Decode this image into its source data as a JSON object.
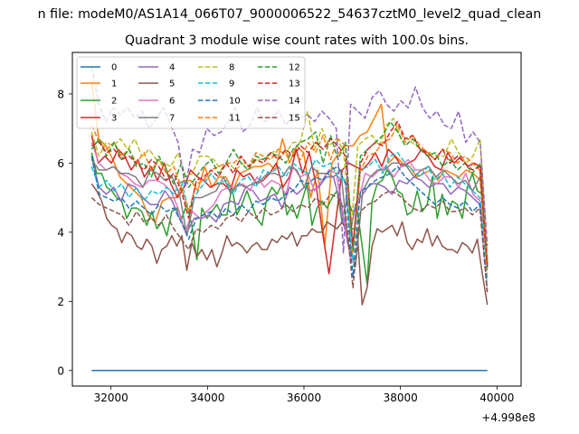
{
  "chart_data": {
    "type": "line",
    "suptitle": "n file: modeM0/AS1A14_066T07_9000006522_54637cztM0_level2_quad_clean",
    "title": "Quadrant 3 module wise count rates with 100.0s bins.",
    "xlabel": "",
    "ylabel": "",
    "x_offset_label": "+4.998e8",
    "x_offset": 499800000,
    "xlim": [
      31200,
      40500
    ],
    "ylim": [
      -0.45,
      9.2
    ],
    "x_ticks": [
      32000,
      34000,
      36000,
      38000,
      40000
    ],
    "x_tick_labels": [
      "32000",
      "34000",
      "36000",
      "38000",
      "40000"
    ],
    "y_ticks": [
      0,
      2,
      4,
      6,
      8
    ],
    "y_tick_labels": [
      "0",
      "2",
      "4",
      "6",
      "8"
    ],
    "x_range": [
      31600,
      39800
    ],
    "x_step": 100,
    "grid": false,
    "legend_position": "top-left",
    "series": [
      {
        "name": "0",
        "color": "#1f77b4",
        "style": "solid",
        "values": [
          0,
          0
        ]
      },
      {
        "name": "1",
        "color": "#ff7f0e",
        "style": "solid",
        "values": [
          8.4,
          6.7,
          6.5,
          6.1,
          5.6,
          5.4,
          5.2,
          5.0,
          4.5,
          4.3,
          4.9,
          5.0,
          5.0,
          5.5,
          5.5,
          5.2,
          5.9,
          5.3,
          5.6,
          5.6,
          5.2,
          5.7,
          5.8,
          5.9,
          5.9,
          6.0,
          5.8,
          6.7,
          6.0,
          6.5,
          6.3,
          5.0,
          5.8,
          3.6,
          6.0,
          6.3,
          6.5,
          6.5,
          6.8,
          6.9,
          7.3,
          7.7,
          6.0,
          6.2,
          6.0,
          5.9,
          5.6,
          5.7,
          5.8,
          5.5,
          5.8,
          5.7,
          5.6,
          5.8,
          5.7,
          5.5,
          3.0
        ]
      },
      {
        "name": "2",
        "color": "#2ca02c",
        "style": "solid",
        "values": [
          6.3,
          5.7,
          5.7,
          5.3,
          5.2,
          5.0,
          4.9,
          4.4,
          4.7,
          4.7,
          4.6,
          4.2,
          4.6,
          4.1,
          4.3,
          3.9,
          4.6,
          4.7,
          4.4,
          4.8,
          4.2,
          3.2,
          4.7,
          4.4,
          4.6,
          4.8,
          4.5,
          4.5,
          5.3,
          4.5,
          4.8,
          5.2,
          4.8,
          4.4,
          4.2,
          5.0,
          5.3,
          5.1,
          5.4,
          4.5,
          4.8,
          4.4,
          4.9,
          5.4,
          4.2,
          4.7,
          4.9,
          4.7,
          5.0,
          5.2,
          4.3,
          5.0,
          4.6,
          4.7,
          3.6,
          2.5,
          4.9,
          5.4,
          5.5,
          5.8,
          5.6,
          5.2,
          5.1,
          4.5,
          4.6,
          5.2,
          4.6,
          4.8,
          5.6,
          4.4,
          5.1,
          4.5,
          4.9,
          4.8,
          4.4,
          5.3,
          5.7,
          5.2,
          5.1,
          3.0
        ]
      },
      {
        "name": "3",
        "color": "#d62728",
        "style": "solid",
        "values": [
          6.8,
          6.0,
          6.2,
          6.0,
          6.4,
          6.2,
          5.8,
          6.1,
          5.6,
          5.9,
          5.5,
          6.0,
          5.4,
          5.0,
          5.3,
          5.8,
          5.6,
          5.5,
          5.3,
          5.4,
          5.4,
          5.2,
          5.8,
          5.6,
          5.7,
          5.4,
          5.5,
          5.7,
          6.0,
          5.3,
          5.6,
          6.4,
          5.7,
          6.3,
          5.4,
          4.0,
          2.8,
          4.3,
          5.8,
          6.0,
          5.9,
          5.8,
          6.0,
          6.3,
          5.9,
          6.4,
          6.2,
          5.9,
          6.0,
          6.1,
          6.4,
          6.2,
          5.9,
          5.8,
          6.3,
          6.0,
          6.2,
          5.9,
          6.0,
          5.9,
          3.1
        ]
      },
      {
        "name": "4",
        "color": "#9467bd",
        "style": "solid",
        "values": [
          6.2,
          5.3,
          5.1,
          5.3,
          4.9,
          5.4,
          5.3,
          5.0,
          4.8,
          4.8,
          5.2,
          4.9,
          4.4,
          4.0,
          4.4,
          4.4,
          4.5,
          4.3,
          4.8,
          4.9,
          4.8,
          5.3,
          5.2,
          4.9,
          5.0,
          5.1,
          4.7,
          5.3,
          5.1,
          5.3,
          5.2,
          5.3,
          5.6,
          5.6,
          4.8,
          3.6,
          4.8,
          5.1,
          5.4,
          5.4,
          5.3,
          5.1,
          5.5,
          5.4,
          5.6,
          5.5,
          5.3,
          5.4,
          5.4,
          5.1,
          5.3,
          5.2,
          5.0,
          4.8,
          3.2
        ]
      },
      {
        "name": "5",
        "color": "#8c564b",
        "style": "solid",
        "values": [
          5.4,
          5.2,
          4.9,
          4.4,
          4.2,
          4.1,
          3.7,
          4.0,
          3.9,
          3.6,
          3.5,
          3.8,
          3.6,
          3.1,
          3.5,
          3.6,
          3.9,
          3.6,
          3.9,
          2.9,
          3.7,
          3.3,
          3.5,
          3.2,
          3.5,
          3.0,
          3.4,
          3.9,
          3.6,
          3.7,
          3.6,
          3.4,
          3.6,
          3.7,
          3.5,
          3.5,
          3.8,
          3.7,
          3.9,
          3.8,
          4.0,
          3.6,
          3.9,
          3.9,
          4.1,
          4.0,
          4.0,
          4.3,
          4.2,
          4.1,
          4.3,
          4.0,
          4.1,
          4.1,
          1.9,
          2.4,
          3.6,
          4.1,
          4.0,
          4.1,
          4.2,
          3.9,
          4.3,
          3.7,
          3.5,
          3.8,
          3.7,
          4.1,
          3.6,
          3.9,
          3.6,
          3.5,
          3.5,
          3.4,
          3.7,
          3.6,
          3.4,
          3.8,
          2.8,
          1.9
        ]
      },
      {
        "name": "6",
        "color": "#e377c2",
        "style": "solid",
        "values": [
          6.6,
          6.0,
          5.8,
          5.9,
          5.7,
          5.6,
          5.4,
          5.3,
          5.5,
          5.5,
          5.4,
          5.2,
          4.7,
          4.0,
          4.6,
          4.4,
          4.6,
          4.8,
          5.2,
          5.3,
          5.3,
          5.4,
          5.2,
          5.6,
          5.3,
          5.5,
          5.4,
          5.1,
          5.9,
          5.6,
          5.7,
          5.2,
          5.5,
          5.8,
          5.7,
          4.5,
          3.2,
          4.8,
          5.7,
          5.6,
          5.8,
          5.9,
          5.6,
          5.9,
          6.1,
          5.8,
          5.8,
          5.5,
          5.4,
          5.6,
          5.6,
          5.3,
          5.7,
          5.1,
          4.9,
          3.1
        ]
      },
      {
        "name": "7",
        "color": "#7f7f7f",
        "style": "solid",
        "values": [
          6.1,
          5.8,
          5.8,
          5.9,
          5.7,
          5.7,
          5.6,
          5.3,
          5.8,
          5.7,
          5.5,
          5.6,
          5.1,
          3.9,
          5.0,
          5.0,
          5.1,
          5.2,
          5.6,
          5.1,
          5.4,
          5.3,
          5.4,
          5.5,
          5.7,
          5.7,
          5.6,
          5.9,
          5.8,
          5.3,
          5.9,
          5.7,
          5.7,
          5.6,
          5.8,
          3.7,
          3.0,
          5.2,
          5.6,
          5.8,
          5.8,
          6.0,
          6.0,
          5.9,
          5.6,
          5.8,
          5.9,
          5.6,
          5.8,
          5.6,
          5.4,
          5.5,
          5.2,
          5.6,
          3.1
        ]
      },
      {
        "name": "8",
        "color": "#bcbd22",
        "style": "dashed",
        "values": [
          6.9,
          6.2,
          6.6,
          6.5,
          6.7,
          6.4,
          6.7,
          6.2,
          6.4,
          6.1,
          6.0,
          5.9,
          6.3,
          5.6,
          5.7,
          6.2,
          6.2,
          6.1,
          5.8,
          6.0,
          5.8,
          6.0,
          5.9,
          6.1,
          6.1,
          6.3,
          6.4,
          6.3,
          6.6,
          6.6,
          7.5,
          6.4,
          7.0,
          6.5,
          6.7,
          6.4,
          3.9,
          6.5,
          6.7,
          6.8,
          6.5,
          7.1,
          7.3,
          6.7,
          6.7,
          6.5,
          6.4,
          6.3,
          6.2,
          6.2,
          6.7,
          6.3,
          6.0,
          6.2,
          6.7,
          3.3
        ]
      },
      {
        "name": "9",
        "color": "#17becf",
        "style": "dashed",
        "values": [
          5.9,
          5.3,
          5.5,
          5.2,
          5.4,
          5.0,
          5.3,
          4.9,
          5.2,
          5.1,
          5.3,
          5.1,
          5.5,
          4.6,
          5.1,
          5.4,
          5.7,
          5.4,
          5.5,
          5.1,
          5.5,
          5.6,
          5.3,
          5.8,
          5.7,
          5.9,
          5.6,
          6.0,
          5.8,
          5.7,
          6.1,
          5.9,
          6.0,
          5.6,
          5.5,
          3.2,
          5.8,
          5.9,
          6.1,
          5.7,
          6.2,
          6.3,
          6.0,
          5.8,
          5.6,
          5.9,
          5.5,
          5.7,
          5.3,
          5.6,
          5.4,
          5.2,
          5.0,
          2.6
        ]
      },
      {
        "name": "10",
        "color": "#1f77b4",
        "style": "dashed",
        "values": [
          6.2,
          5.1,
          5.0,
          4.9,
          5.0,
          4.7,
          4.9,
          4.7,
          4.5,
          4.8,
          4.6,
          4.7,
          4.3,
          3.8,
          4.4,
          4.5,
          4.6,
          4.4,
          4.7,
          4.5,
          4.8,
          4.6,
          4.9,
          4.8,
          5.0,
          4.9,
          5.1,
          5.2,
          5.5,
          5.4,
          5.6,
          5.5,
          5.8,
          5.9,
          5.4,
          2.7,
          5.2,
          5.3,
          5.5,
          5.6,
          5.7,
          5.9,
          5.6,
          5.4,
          5.2,
          5.0,
          4.8,
          5.0,
          4.8,
          4.7,
          4.9,
          4.6,
          4.8,
          2.3
        ]
      },
      {
        "name": "11",
        "color": "#ff7f0e",
        "style": "dashed",
        "values": [
          7.1,
          6.6,
          6.4,
          6.6,
          6.2,
          6.4,
          6.0,
          6.3,
          5.8,
          6.1,
          5.7,
          5.9,
          5.3,
          4.6,
          5.4,
          5.5,
          5.8,
          5.9,
          6.0,
          6.0,
          6.2,
          5.9,
          6.3,
          6.2,
          6.1,
          6.4,
          6.2,
          6.3,
          6.1,
          6.6,
          6.3,
          6.8,
          6.1,
          6.7,
          6.5,
          3.4,
          5.8,
          6.2,
          6.3,
          6.6,
          6.7,
          7.1,
          6.6,
          6.8,
          6.5,
          6.3,
          6.1,
          6.4,
          6.3,
          6.0,
          6.2,
          6.0,
          5.8,
          2.8
        ]
      },
      {
        "name": "12",
        "color": "#2ca02c",
        "style": "dashed",
        "values": [
          6.4,
          6.7,
          6.2,
          6.6,
          6.1,
          6.4,
          5.9,
          6.0,
          5.6,
          6.2,
          5.8,
          5.4,
          6.0,
          5.3,
          5.6,
          5.9,
          6.1,
          5.7,
          6.0,
          6.4,
          6.0,
          5.8,
          6.2,
          6.1,
          6.3,
          6.2,
          6.0,
          6.4,
          6.6,
          6.7,
          6.9,
          6.0,
          6.8,
          6.1,
          6.6,
          3.5,
          6.2,
          6.4,
          6.6,
          6.8,
          7.2,
          6.9,
          6.5,
          6.7,
          6.4,
          6.2,
          6.3,
          5.9,
          6.1,
          5.8,
          6.0,
          5.7,
          6.0,
          2.9
        ]
      },
      {
        "name": "13",
        "color": "#d62728",
        "style": "dashed",
        "values": [
          6.5,
          6.6,
          6.3,
          6.4,
          6.1,
          6.2,
          6.0,
          5.8,
          6.1,
          5.9,
          5.5,
          5.7,
          5.2,
          4.4,
          5.5,
          5.6,
          5.8,
          5.6,
          6.0,
          5.7,
          6.2,
          5.9,
          6.1,
          6.0,
          6.3,
          6.1,
          6.4,
          6.2,
          6.5,
          6.3,
          6.6,
          6.4,
          6.7,
          6.5,
          6.2,
          3.6,
          6.0,
          6.4,
          6.6,
          6.5,
          6.9,
          7.2,
          6.7,
          6.8,
          6.4,
          6.3,
          6.1,
          6.4,
          6.0,
          6.2,
          6.0,
          5.8,
          5.9,
          3.0
        ]
      },
      {
        "name": "14",
        "color": "#9467bd",
        "style": "dashed",
        "values": [
          8.8,
          7.7,
          7.2,
          7.6,
          7.4,
          7.6,
          7.3,
          7.5,
          7.0,
          7.3,
          7.6,
          7.1,
          6.6,
          5.3,
          6.4,
          6.3,
          7.0,
          6.8,
          6.9,
          7.2,
          7.6,
          6.9,
          7.1,
          7.6,
          7.2,
          7.3,
          7.5,
          7.1,
          7.4,
          7.3,
          7.4,
          7.2,
          7.5,
          7.3,
          7.0,
          3.4,
          7.7,
          7.5,
          7.3,
          7.9,
          8.1,
          7.7,
          7.5,
          7.8,
          7.6,
          8.2,
          7.6,
          7.3,
          7.5,
          7.1,
          7.0,
          7.5,
          6.6,
          6.9,
          6.6,
          3.6
        ]
      },
      {
        "name": "15",
        "color": "#8c564b",
        "style": "dashed",
        "values": [
          5.0,
          4.8,
          4.7,
          4.6,
          4.5,
          4.2,
          4.6,
          4.3,
          4.4,
          4.2,
          4.5,
          4.1,
          3.8,
          3.5,
          4.1,
          4.0,
          4.2,
          4.1,
          4.4,
          4.5,
          4.3,
          4.6,
          4.4,
          4.7,
          4.5,
          4.6,
          4.8,
          4.6,
          4.8,
          4.7,
          5.0,
          4.8,
          5.1,
          5.0,
          4.6,
          2.4,
          4.6,
          4.8,
          4.9,
          5.1,
          5.2,
          5.1,
          4.9,
          4.7,
          4.6,
          4.8,
          4.7,
          4.9,
          4.6,
          4.6,
          4.7,
          4.5,
          4.7,
          2.2
        ]
      }
    ]
  }
}
